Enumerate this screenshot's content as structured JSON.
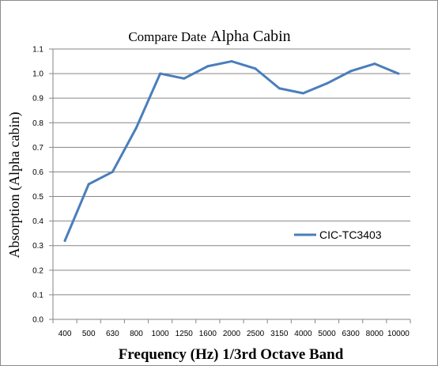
{
  "chart_data": {
    "type": "line",
    "title_small": "Compare Date",
    "title_large": "Alpha Cabin",
    "xlabel": "Frequency (Hz) 1/3rd Octave Band",
    "ylabel": "Absorption (Alpha cabin)",
    "categories": [
      "400",
      "500",
      "630",
      "800",
      "1000",
      "1250",
      "1600",
      "2000",
      "2500",
      "3150",
      "4000",
      "5000",
      "6300",
      "8000",
      "10000"
    ],
    "series": [
      {
        "name": "CIC-TC3403",
        "values": [
          0.32,
          0.55,
          0.6,
          0.78,
          1.0,
          0.98,
          1.03,
          1.05,
          1.02,
          0.94,
          0.92,
          0.96,
          1.01,
          1.04,
          1.0
        ]
      }
    ],
    "ylim": [
      0,
      1.1
    ],
    "yticks": [
      "0.0",
      "0.1",
      "0.2",
      "0.3",
      "0.4",
      "0.5",
      "0.6",
      "0.7",
      "0.8",
      "0.9",
      "1.0",
      "1.1"
    ],
    "grid": true,
    "legend_position": "right",
    "line_color": "#4a7ebb",
    "grid_color": "#868686"
  }
}
